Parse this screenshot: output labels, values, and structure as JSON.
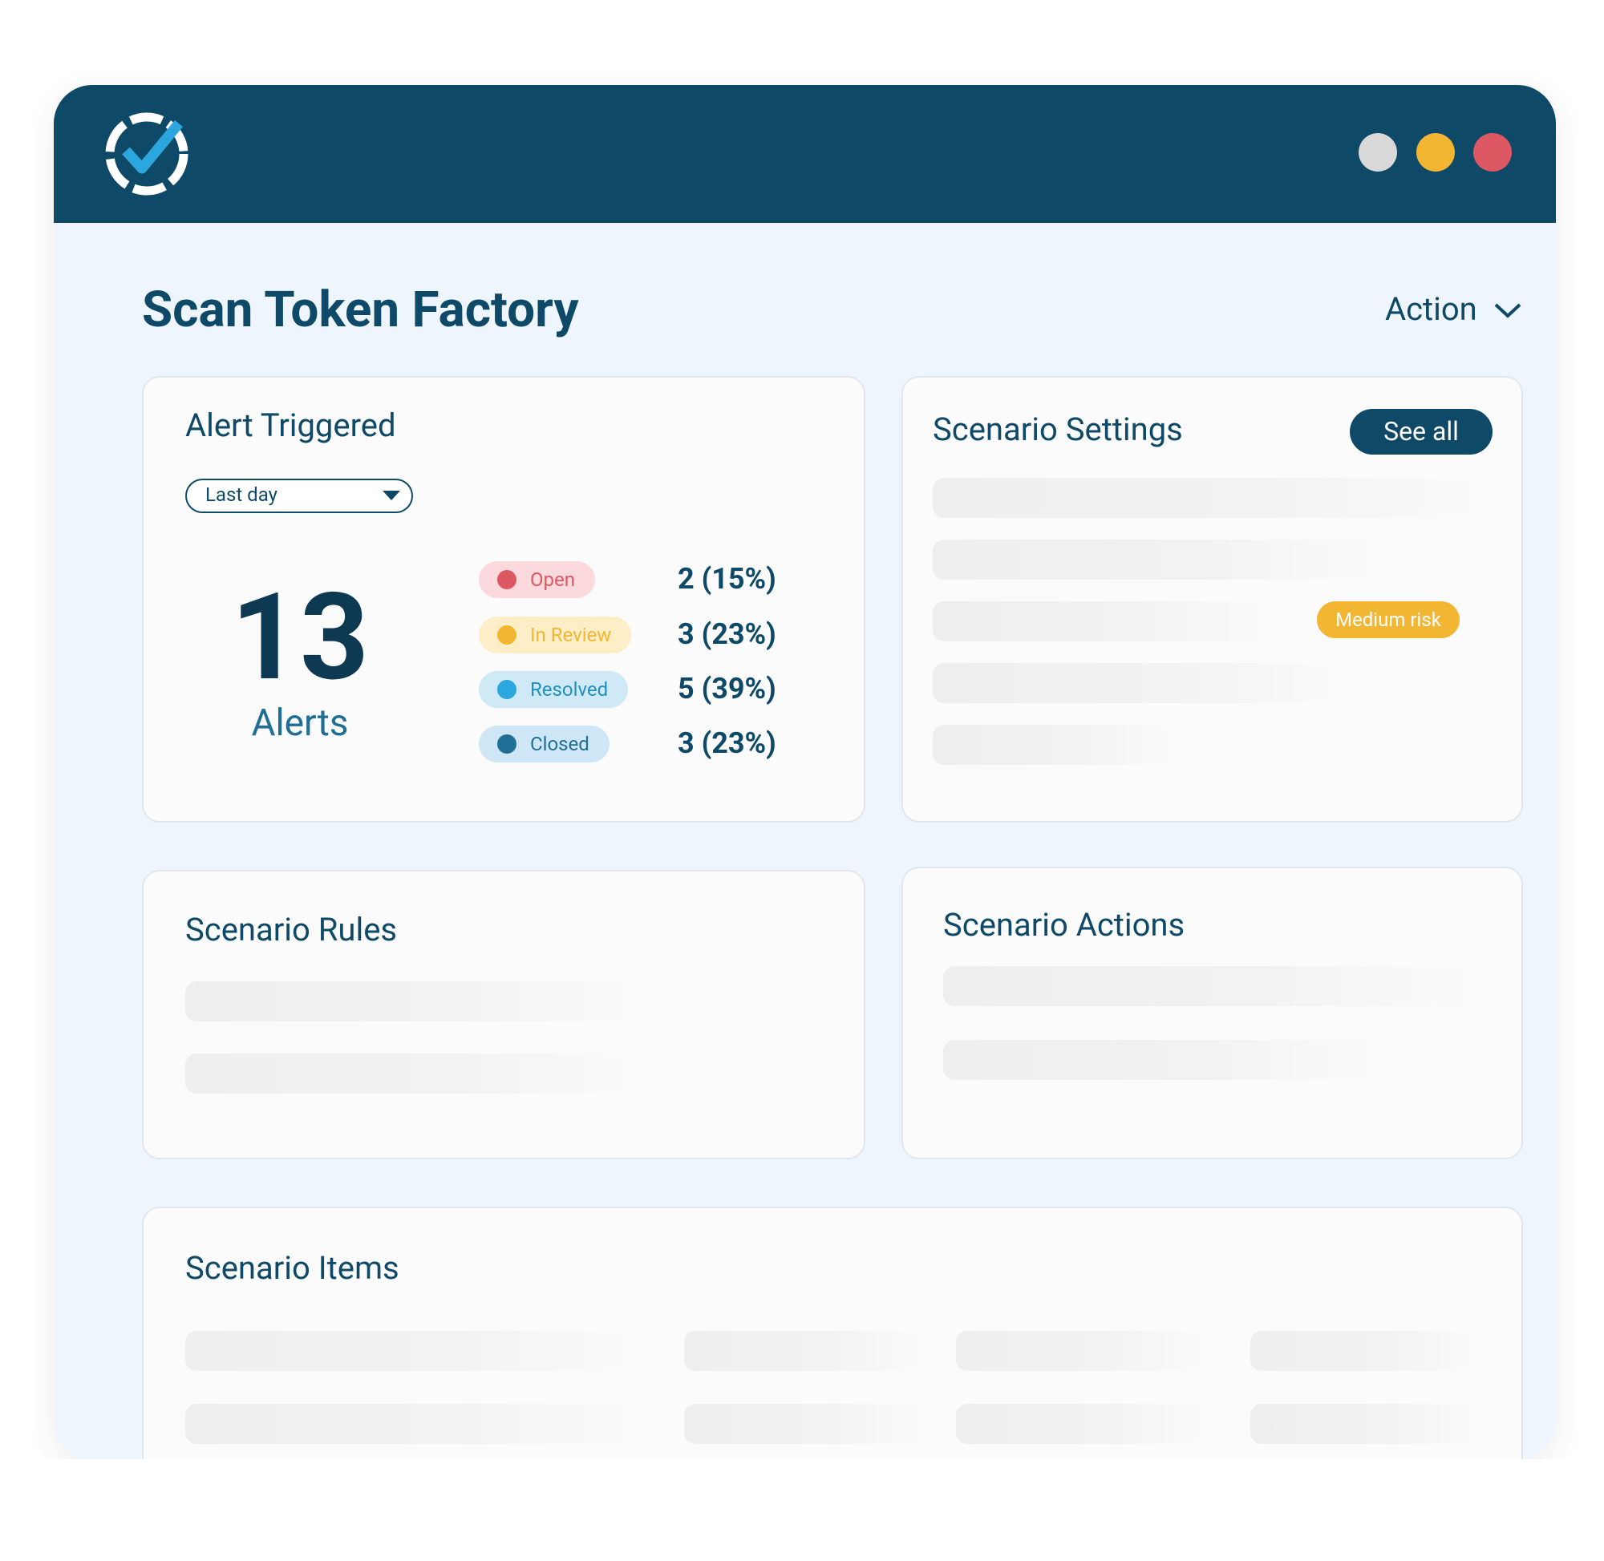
{
  "header": {
    "title": "Scan Token Factory",
    "action": "Action"
  },
  "alert_triggered": {
    "title": "Alert Triggered",
    "filter": "Last day",
    "total": "13",
    "total_label": "Alerts",
    "statuses": [
      {
        "label": "Open",
        "value": "2 (15%)"
      },
      {
        "label": "In Review",
        "value": "3 (23%)"
      },
      {
        "label": "Resolved",
        "value": "5 (39%)"
      },
      {
        "label": "Closed",
        "value": "3 (23%)"
      }
    ]
  },
  "scenario_settings": {
    "title": "Scenario Settings",
    "button": "See all",
    "badge": "Medium risk"
  },
  "scenario_rules": {
    "title": "Scenario Rules"
  },
  "scenario_actions": {
    "title": "Scenario Actions"
  },
  "scenario_items": {
    "title": "Scenario Items"
  }
}
